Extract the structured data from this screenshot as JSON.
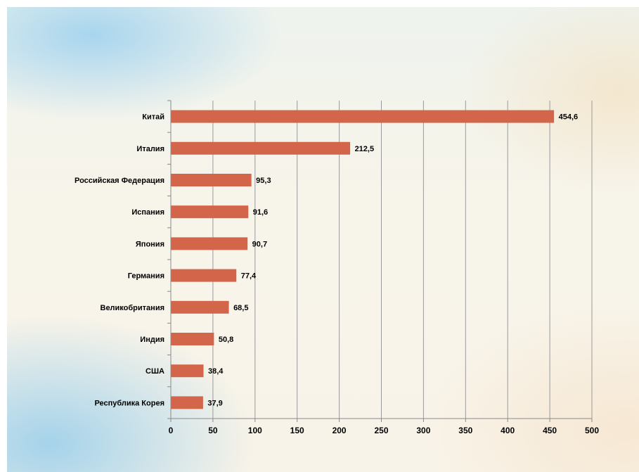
{
  "chart_data": {
    "type": "bar",
    "orientation": "horizontal",
    "title": "",
    "xlabel": "",
    "ylabel": "",
    "categories": [
      "Китай",
      "Италия",
      "Российская Федерация",
      "Испания",
      "Япония",
      "Германия",
      "Великобритания",
      "Индия",
      "США",
      "Республика Корея"
    ],
    "values": [
      454.6,
      212.5,
      95.3,
      91.6,
      90.7,
      77.4,
      68.5,
      50.8,
      38.4,
      37.9
    ],
    "value_labels": [
      "454,6",
      "212,5",
      "95,3",
      "91,6",
      "90,7",
      "77,4",
      "68,5",
      "50,8",
      "38,4",
      "37,9"
    ],
    "xlim": [
      0,
      500
    ],
    "xticks": [
      0,
      50,
      100,
      150,
      200,
      250,
      300,
      350,
      400,
      450,
      500
    ],
    "xtick_labels": [
      "0",
      "50",
      "100",
      "150",
      "200",
      "250",
      "300",
      "350",
      "400",
      "450",
      "500"
    ],
    "grid": "vertical",
    "legend": "none",
    "colors": {
      "bar": "#d2654a",
      "grid": "#9a9a9a",
      "axis": "#8a8a8a"
    }
  }
}
